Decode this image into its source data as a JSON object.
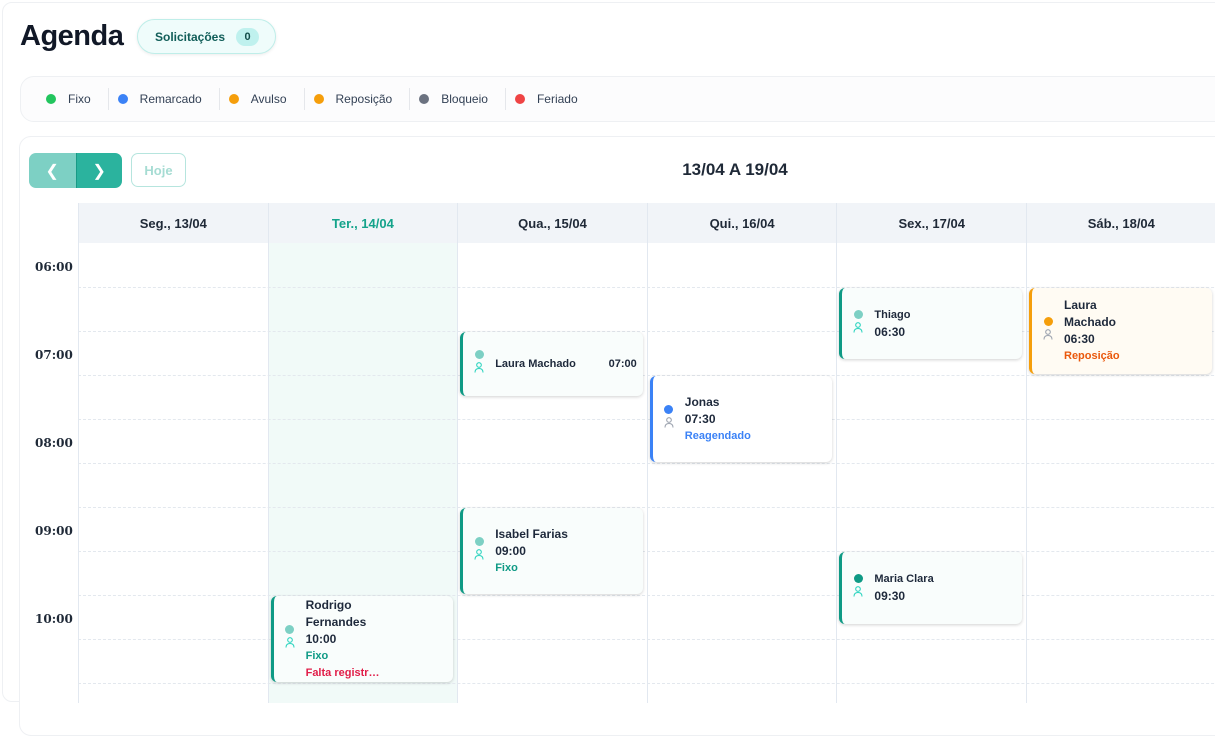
{
  "title": "Agenda",
  "requests": {
    "label": "Solicitações",
    "count": "0"
  },
  "legend": [
    {
      "label": "Fixo",
      "color": "#22c55e"
    },
    {
      "label": "Remarcado",
      "color": "#3b82f6"
    },
    {
      "label": "Avulso",
      "color": "#f59e0b"
    },
    {
      "label": "Reposição",
      "color": "#f59e0b"
    },
    {
      "label": "Bloqueio",
      "color": "#6b7280"
    },
    {
      "label": "Feriado",
      "color": "#ef4444"
    }
  ],
  "nav": {
    "prev_icon": "chevron-left-icon",
    "next_icon": "chevron-right-icon",
    "today_label": "Hoje",
    "range": "13/04 A 19/04"
  },
  "days": [
    "Seg., 13/04",
    "Ter., 14/04",
    "Qua., 15/04",
    "Qui., 16/04",
    "Sex., 17/04",
    "Sáb., 18/04"
  ],
  "today_index": 1,
  "hours": [
    "06:00",
    "07:00",
    "08:00",
    "09:00",
    "10:00"
  ],
  "events": [
    {
      "name": "Laura Machado",
      "time": "07:00",
      "day": 2,
      "dot": "#7dd0c4",
      "status": ""
    },
    {
      "name": "Jonas",
      "time": "07:30",
      "day": 3,
      "dot": "#3b82f6",
      "status": "Reagendado",
      "status_color": "#3b82f6"
    },
    {
      "name": "Thiago",
      "time": "06:30",
      "day": 4,
      "dot": "#7dd0c4",
      "status": ""
    },
    {
      "name": "Laura Machado",
      "time": "06:30",
      "day": 5,
      "dot": "#f59e0b",
      "status": "Reposição",
      "status_color": "#ea580c"
    },
    {
      "name": "Isabel Farias",
      "time": "09:00",
      "day": 2,
      "dot": "#7dd0c4",
      "status": "Fixo",
      "status_color": "#0f9a85"
    },
    {
      "name": "Maria Clara",
      "time": "09:30",
      "day": 4,
      "dot": "#0f9a85",
      "status": ""
    },
    {
      "name": "Rodrigo Fernandes",
      "time": "10:00",
      "day": 1,
      "dot": "#7dd0c4",
      "status": "Fixo",
      "status_color": "#0f9a85",
      "warning": "Falta registr…",
      "warning_color": "#e11d48"
    }
  ]
}
